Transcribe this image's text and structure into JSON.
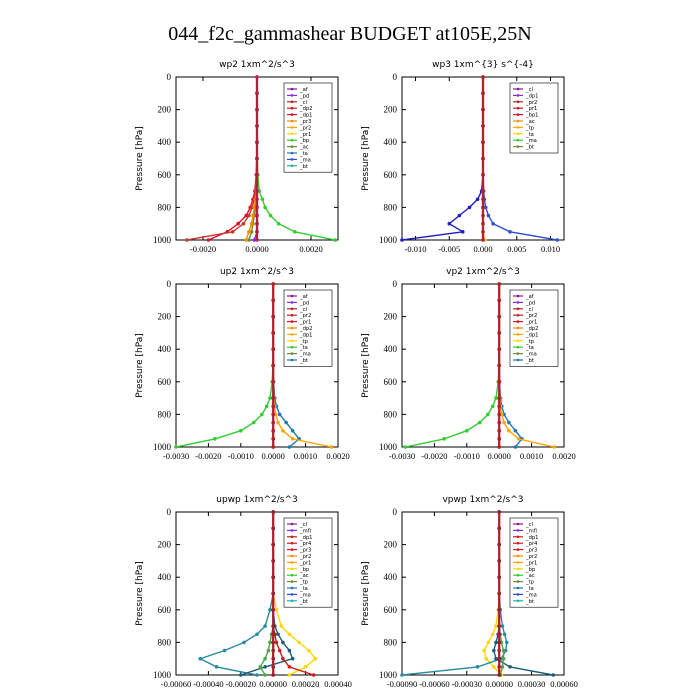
{
  "page_title": "044_f2c_gammashear  BUDGET at105E,25N",
  "chart_data": [
    {
      "type": "line",
      "title": "wp2  1xm^2/s^3",
      "ylabel": "Pressure [hPa]",
      "ylim": [
        1000,
        0
      ],
      "xlim": [
        -0.003,
        0.003
      ],
      "xticks": [
        "-0.0020",
        "0.0000",
        "0.0020"
      ],
      "xtick_values": [
        -0.002,
        0.0,
        0.002
      ],
      "yticks": [
        "0",
        "200",
        "400",
        "600",
        "800",
        "1000"
      ],
      "legend": [
        "_af",
        "_pd",
        "_cl",
        "_dp2",
        "_dp1",
        "_pr3",
        "_pr2",
        "_pr1",
        "_bp",
        "_ac",
        "_ta",
        "_ma",
        "_bt"
      ],
      "pressure": [
        0,
        100,
        200,
        300,
        400,
        500,
        600,
        700,
        750,
        800,
        850,
        900,
        950,
        1000
      ],
      "series": [
        {
          "name": "_pd",
          "color": "#8a2be2",
          "x": [
            0,
            0,
            0,
            0,
            0,
            0,
            0,
            0,
            0,
            0,
            0,
            0,
            0,
            -0.0001
          ]
        },
        {
          "name": "_dp1",
          "color": "#e0102f",
          "x": [
            0,
            0,
            0,
            0,
            0,
            -1e-05,
            -3e-05,
            -8e-05,
            -0.00015,
            -0.00025,
            -0.0004,
            -0.0007,
            -0.0011,
            -0.0018
          ]
        },
        {
          "name": "_pr1",
          "color": "#c93a2a",
          "x": [
            0,
            0,
            0,
            0,
            0,
            0,
            -2e-05,
            -6e-05,
            -0.0001,
            -0.00018,
            -0.0003,
            -0.0005,
            -0.0009,
            -0.0026
          ]
        },
        {
          "name": "_bp",
          "color": "#32cd32",
          "x": [
            0,
            0,
            0,
            0,
            0,
            1e-05,
            3e-05,
            8e-05,
            0.0002,
            0.0003,
            0.0005,
            0.0008,
            0.0014,
            0.0029
          ]
        },
        {
          "name": "_ac",
          "color": "#6e8b3d",
          "x": [
            0,
            0,
            0,
            0,
            0,
            0,
            0,
            0,
            -2e-05,
            -5e-05,
            -0.0001,
            -0.00015,
            -0.0002,
            -0.0003
          ]
        },
        {
          "name": "_pr2",
          "color": "#ff8c00",
          "x": [
            0,
            0,
            0,
            0,
            0,
            0,
            0,
            -2e-05,
            -5e-05,
            -0.0001,
            -0.00015,
            -0.0002,
            -0.0003,
            -0.0004
          ]
        },
        {
          "name": "_af",
          "color": "#b22288",
          "x": [
            0,
            0,
            0,
            0,
            0,
            0,
            0,
            0,
            0,
            0,
            0,
            0,
            0,
            0
          ]
        }
      ]
    },
    {
      "type": "line",
      "title": "wp3  1xm^{3} s^{-4}",
      "ylabel": "Pressure [hPa]",
      "ylim": [
        1000,
        0
      ],
      "xlim": [
        -0.012,
        0.012
      ],
      "xticks": [
        "-0.010",
        "-0.005",
        "0.000",
        "0.005",
        "0.010"
      ],
      "xtick_values": [
        -0.01,
        -0.005,
        0.0,
        0.005,
        0.01
      ],
      "yticks": [
        "0",
        "200",
        "400",
        "600",
        "800",
        "1000"
      ],
      "legend": [
        "_cl",
        "_dp1",
        "_pr2",
        "_pr1",
        "_bp1",
        "_ac",
        "_tp",
        "_ta",
        "_ma",
        "_bt"
      ],
      "pressure": [
        0,
        100,
        200,
        300,
        400,
        500,
        600,
        700,
        750,
        800,
        850,
        900,
        950,
        1000
      ],
      "series": [
        {
          "name": "_ta",
          "color": "#1f1fbf",
          "x": [
            0,
            0,
            0,
            0,
            0,
            0,
            0,
            -0.0002,
            -0.0008,
            -0.002,
            -0.0035,
            -0.005,
            -0.003,
            -0.012
          ]
        },
        {
          "name": "_tp",
          "color": "#3050d0",
          "x": [
            0,
            0,
            0,
            0,
            0,
            0,
            0,
            0.0001,
            0.0002,
            0.0004,
            0.0008,
            0.0015,
            0.004,
            0.011
          ]
        },
        {
          "name": "_pr1",
          "color": "#ffcc33",
          "x": [
            0,
            0,
            0,
            0,
            0,
            0,
            0,
            0,
            0,
            0,
            0,
            0,
            0,
            0.0003
          ]
        },
        {
          "name": "_cl",
          "color": "#b22222",
          "x": [
            0,
            0,
            0,
            0,
            0,
            0,
            0,
            0,
            0,
            0,
            0,
            0,
            0,
            0
          ]
        }
      ]
    },
    {
      "type": "line",
      "title": "up2  1xm^2/s^3",
      "ylabel": "Pressure [hPa]",
      "ylim": [
        1000,
        0
      ],
      "xlim": [
        -0.003,
        0.002
      ],
      "xticks": [
        "-0.0030",
        "-0.0020",
        "-0.0010",
        "0.0000",
        "0.0010",
        "0.0020"
      ],
      "xtick_values": [
        -0.003,
        -0.002,
        -0.001,
        0.0,
        0.001,
        0.002
      ],
      "yticks": [
        "0",
        "200",
        "400",
        "600",
        "800",
        "1000"
      ],
      "legend": [
        "_af",
        "_pd",
        "_cl",
        "_pr2",
        "_pr1",
        "_dp2",
        "_dp1",
        "_tp",
        "_ta",
        "_ma",
        "_bt"
      ],
      "pressure": [
        0,
        100,
        200,
        300,
        400,
        500,
        600,
        700,
        750,
        800,
        850,
        900,
        950,
        1000
      ],
      "series": [
        {
          "name": "_dp1",
          "color": "#32cd32",
          "x": [
            0,
            0,
            0,
            0,
            0,
            -1e-05,
            -3e-05,
            -0.0001,
            -0.0002,
            -0.00035,
            -0.0006,
            -0.001,
            -0.0018,
            -0.003
          ]
        },
        {
          "name": "_tp",
          "color": "#1f78b4",
          "x": [
            0,
            0,
            0,
            0,
            0,
            0,
            1e-05,
            5e-05,
            0.0001,
            0.0002,
            0.0004,
            0.0006,
            0.0008,
            0.0005
          ]
        },
        {
          "name": "_pr2",
          "color": "#ffa500",
          "x": [
            0,
            0,
            0,
            0,
            0,
            0,
            0,
            2e-05,
            4e-05,
            8e-05,
            0.00015,
            0.0003,
            0.0006,
            0.0018
          ]
        },
        {
          "name": "_pd",
          "color": "#8b1a1a",
          "x": [
            0,
            0,
            0,
            0,
            0,
            0,
            0,
            0,
            0,
            0,
            0,
            0,
            0,
            0
          ]
        },
        {
          "name": "_cl",
          "color": "#d01c1c",
          "x": [
            0,
            0,
            0,
            0,
            0,
            0,
            0,
            0,
            0,
            0,
            0,
            0,
            0,
            0
          ]
        }
      ]
    },
    {
      "type": "line",
      "title": "vp2  1xm^2/s^3",
      "ylabel": "Pressure [hPa]",
      "ylim": [
        1000,
        0
      ],
      "xlim": [
        -0.003,
        0.002
      ],
      "xticks": [
        "-0.0030",
        "-0.0020",
        "-0.0010",
        "0.0000",
        "0.0010",
        "0.0020"
      ],
      "xtick_values": [
        -0.003,
        -0.002,
        -0.001,
        0.0,
        0.001,
        0.002
      ],
      "yticks": [
        "0",
        "200",
        "400",
        "600",
        "800",
        "1000"
      ],
      "legend": [
        "_af",
        "_pd",
        "_cl",
        "_pr2",
        "_pr1",
        "_dp2",
        "_dp1",
        "_tp",
        "_ta",
        "_ma",
        "_bt"
      ],
      "pressure": [
        0,
        100,
        200,
        300,
        400,
        500,
        600,
        700,
        750,
        800,
        850,
        900,
        950,
        1000
      ],
      "series": [
        {
          "name": "_dp1",
          "color": "#32cd32",
          "x": [
            0,
            0,
            0,
            0,
            0,
            -1e-05,
            -3e-05,
            -0.0001,
            -0.0002,
            -0.00035,
            -0.0006,
            -0.001,
            -0.0017,
            -0.0029
          ]
        },
        {
          "name": "_tp",
          "color": "#1f78b4",
          "x": [
            0,
            0,
            0,
            0,
            0,
            0,
            1e-05,
            4e-05,
            8e-05,
            0.00015,
            0.0003,
            0.0005,
            0.0007,
            0.0005
          ]
        },
        {
          "name": "_pr2",
          "color": "#ffa500",
          "x": [
            0,
            0,
            0,
            0,
            0,
            0,
            0,
            2e-05,
            4e-05,
            8e-05,
            0.00015,
            0.0003,
            0.0006,
            0.0017
          ]
        },
        {
          "name": "_pd",
          "color": "#8b1a1a",
          "x": [
            0,
            0,
            0,
            0,
            0,
            0,
            0,
            0,
            0,
            0,
            0,
            0,
            0,
            0
          ]
        },
        {
          "name": "_cl",
          "color": "#d01c1c",
          "x": [
            0,
            0,
            0,
            0,
            0,
            0,
            0,
            0,
            0,
            0,
            0,
            0,
            0,
            0
          ]
        }
      ]
    },
    {
      "type": "line",
      "title": "upwp  1xm^2/s^3",
      "ylabel": "Pressure [hPa]",
      "ylim": [
        1000,
        0
      ],
      "xlim": [
        -0.0006,
        0.0004
      ],
      "xticks": [
        "-0.00060",
        "-0.00040",
        "-0.00020",
        "0.00000",
        "0.00020",
        "0.00040"
      ],
      "xtick_values": [
        -0.0006,
        -0.0004,
        -0.0002,
        0.0,
        0.0002,
        0.0004
      ],
      "yticks": [
        "0",
        "200",
        "400",
        "600",
        "800",
        "1000"
      ],
      "legend": [
        "_cl",
        "_mfl",
        "_dp1",
        "_pr4",
        "_pr3",
        "_pr2",
        "_pr1",
        "_bp",
        "_ac",
        "_tp",
        "_ta",
        "_ma",
        "_bt"
      ],
      "pressure": [
        0,
        100,
        200,
        300,
        400,
        500,
        600,
        700,
        750,
        800,
        850,
        900,
        950,
        1000
      ],
      "series": [
        {
          "name": "_pr2",
          "color": "#ffd700",
          "x": [
            0,
            0,
            0,
            0,
            0,
            0,
            2e-05,
            5e-05,
            0.0001,
            0.00016,
            0.00022,
            0.00026,
            0.0002,
            0.0001
          ]
        },
        {
          "name": "_tp",
          "color": "#2a8aa0",
          "x": [
            0,
            0,
            0,
            0,
            0,
            0,
            -2e-05,
            -5e-05,
            -0.0001,
            -0.00018,
            -0.0003,
            -0.00045,
            -0.00035,
            -0.0001
          ]
        },
        {
          "name": "_ta",
          "color": "#1a5f7a",
          "x": [
            0,
            0,
            0,
            0,
            0,
            0,
            0,
            1e-05,
            3e-05,
            6e-05,
            0.0001,
            0.00012,
            -5e-05,
            -0.0002
          ]
        },
        {
          "name": "_pr4",
          "color": "#d01c1c",
          "x": [
            0,
            0,
            0,
            0,
            0,
            0,
            0,
            0,
            1e-05,
            2e-05,
            4e-05,
            6e-05,
            0.0001,
            0.00025
          ]
        },
        {
          "name": "_bp",
          "color": "#4aa84a",
          "x": [
            0,
            0,
            0,
            0,
            0,
            0,
            0,
            0,
            -1e-05,
            -2e-05,
            -3e-05,
            -5e-05,
            -8e-05,
            -5e-05
          ]
        },
        {
          "name": "_dp1",
          "color": "#8b1a1a",
          "x": [
            0,
            0,
            0,
            0,
            0,
            0,
            0,
            0,
            0,
            0,
            0,
            0,
            0,
            0
          ]
        }
      ]
    },
    {
      "type": "line",
      "title": "vpwp  1xm^2/s^3",
      "ylabel": "Pressure [hPa]",
      "ylim": [
        1000,
        0
      ],
      "xlim": [
        -0.0009,
        0.0006
      ],
      "xticks": [
        "-0.00090",
        "-0.00060",
        "-0.00030",
        "0.00000",
        "0.00030",
        "0.00060"
      ],
      "xtick_values": [
        -0.0009,
        -0.0006,
        -0.0003,
        0.0,
        0.0003,
        0.0006
      ],
      "yticks": [
        "0",
        "200",
        "400",
        "600",
        "800",
        "1000"
      ],
      "legend": [
        "_cl",
        "_mfl",
        "_dp1",
        "_pr4",
        "_pr3",
        "_pr2",
        "_pr1",
        "_bp",
        "_ac",
        "_tp",
        "_ta",
        "_ma",
        "_bt"
      ],
      "pressure": [
        0,
        100,
        200,
        300,
        400,
        500,
        600,
        700,
        750,
        800,
        850,
        900,
        950,
        1000
      ],
      "series": [
        {
          "name": "_pr2",
          "color": "#ffd700",
          "x": [
            0,
            0,
            0,
            0,
            0,
            0,
            -1e-05,
            -3e-05,
            -6e-05,
            -0.0001,
            -0.00014,
            -0.00012,
            -5e-05,
            2e-05
          ]
        },
        {
          "name": "_tp",
          "color": "#2a8aa0",
          "x": [
            0,
            0,
            0,
            0,
            0,
            0,
            1e-05,
            3e-05,
            5e-05,
            7e-05,
            6e-05,
            2e-05,
            -0.0002,
            -0.0009
          ]
        },
        {
          "name": "_ta",
          "color": "#1a5f7a",
          "x": [
            0,
            0,
            0,
            0,
            0,
            0,
            0,
            0,
            -1e-05,
            -3e-05,
            -5e-05,
            -3e-05,
            0.0001,
            0.0005
          ]
        },
        {
          "name": "_bp",
          "color": "#4aa84a",
          "x": [
            0,
            0,
            0,
            0,
            0,
            0,
            0,
            0,
            1e-05,
            2e-05,
            4e-05,
            4e-05,
            3e-05,
            1e-05
          ]
        },
        {
          "name": "_dp1",
          "color": "#8b1a1a",
          "x": [
            0,
            0,
            0,
            0,
            0,
            0,
            0,
            0,
            0,
            0,
            0,
            0,
            0,
            0
          ]
        }
      ]
    }
  ]
}
